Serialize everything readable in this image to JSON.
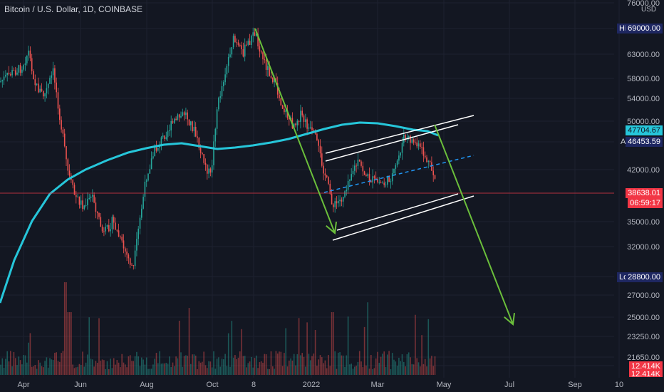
{
  "title": "Bitcoin / U.S. Dollar, 1D, COINBASE",
  "currency": "USD",
  "chart_data": {
    "type": "candlestick",
    "y_ticks": [
      "76000.00",
      "69000.00",
      "63000.00",
      "58000.00",
      "54000.00",
      "50000.00",
      "46453.59",
      "42000.00",
      "38638.01",
      "35000.00",
      "32000.00",
      "28800.00",
      "27000.00",
      "25000.00",
      "23250.00",
      "21650.00",
      "12.414K"
    ],
    "x_ticks": [
      "Apr",
      "Jun",
      "Aug",
      "Oct",
      "8",
      "2022",
      "Mar",
      "May",
      "Jul",
      "Sep",
      "10"
    ],
    "high_label": "High",
    "high_value": "69000.00",
    "low_label": "Low",
    "low_value": "28800.00",
    "avg_label": "Avg",
    "avg_value": "46453.59",
    "ma_value": "47704.67",
    "last_price": "38638.01",
    "countdown": "06:59:17",
    "volume_value": "12.414K",
    "volume_value_2": "12.414K",
    "ma_series": [
      [
        0,
        425
      ],
      [
        20,
        365
      ],
      [
        45,
        310
      ],
      [
        70,
        272
      ],
      [
        95,
        252
      ],
      [
        120,
        238
      ],
      [
        150,
        225
      ],
      [
        180,
        214
      ],
      [
        205,
        208
      ],
      [
        230,
        203
      ],
      [
        255,
        201
      ],
      [
        280,
        205
      ],
      [
        305,
        209
      ],
      [
        330,
        207
      ],
      [
        355,
        204
      ],
      [
        380,
        200
      ],
      [
        405,
        195
      ],
      [
        430,
        188
      ],
      [
        455,
        181
      ],
      [
        480,
        175
      ],
      [
        505,
        172
      ],
      [
        530,
        173
      ],
      [
        555,
        177
      ],
      [
        580,
        182
      ],
      [
        600,
        184
      ],
      [
        615,
        190
      ]
    ],
    "price_path": [
      [
        0,
        115
      ],
      [
        15,
        103
      ],
      [
        30,
        95
      ],
      [
        40,
        72
      ],
      [
        50,
        120
      ],
      [
        62,
        135
      ],
      [
        75,
        100
      ],
      [
        85,
        170
      ],
      [
        95,
        240
      ],
      [
        105,
        275
      ],
      [
        118,
        290
      ],
      [
        130,
        275
      ],
      [
        145,
        330
      ],
      [
        158,
        310
      ],
      [
        172,
        345
      ],
      [
        187,
        378
      ],
      [
        196,
        310
      ],
      [
        206,
        245
      ],
      [
        216,
        215
      ],
      [
        230,
        190
      ],
      [
        245,
        170
      ],
      [
        260,
        158
      ],
      [
        272,
        182
      ],
      [
        285,
        225
      ],
      [
        296,
        248
      ],
      [
        304,
        155
      ],
      [
        315,
        105
      ],
      [
        327,
        55
      ],
      [
        340,
        75
      ],
      [
        358,
        45
      ],
      [
        370,
        85
      ],
      [
        383,
        110
      ],
      [
        396,
        148
      ],
      [
        410,
        175
      ],
      [
        422,
        162
      ],
      [
        432,
        178
      ],
      [
        443,
        195
      ],
      [
        455,
        240
      ],
      [
        468,
        290
      ],
      [
        480,
        278
      ],
      [
        492,
        243
      ],
      [
        503,
        228
      ],
      [
        515,
        248
      ],
      [
        527,
        255
      ],
      [
        540,
        258
      ],
      [
        553,
        243
      ],
      [
        567,
        193
      ],
      [
        580,
        198
      ],
      [
        593,
        213
      ],
      [
        603,
        233
      ],
      [
        612,
        252
      ]
    ],
    "drawings": {
      "down_arrow_1": [
        [
          358,
          40
        ],
        [
          470,
          327
        ]
      ],
      "down_arrow_2": [
        [
          610,
          175
        ],
        [
          720,
          455
        ]
      ],
      "channel_top_outer": [
        [
          457,
          215
        ],
        [
          665,
          162
        ]
      ],
      "channel_top_inner": [
        [
          457,
          226
        ],
        [
          643,
          175
        ]
      ],
      "channel_mid": [
        [
          455,
          270
        ],
        [
          665,
          218
        ]
      ],
      "channel_bot_outer": [
        [
          467,
          337
        ],
        [
          665,
          275
        ]
      ],
      "channel_bot_inner": [
        [
          473,
          323
        ],
        [
          643,
          272
        ]
      ]
    }
  }
}
